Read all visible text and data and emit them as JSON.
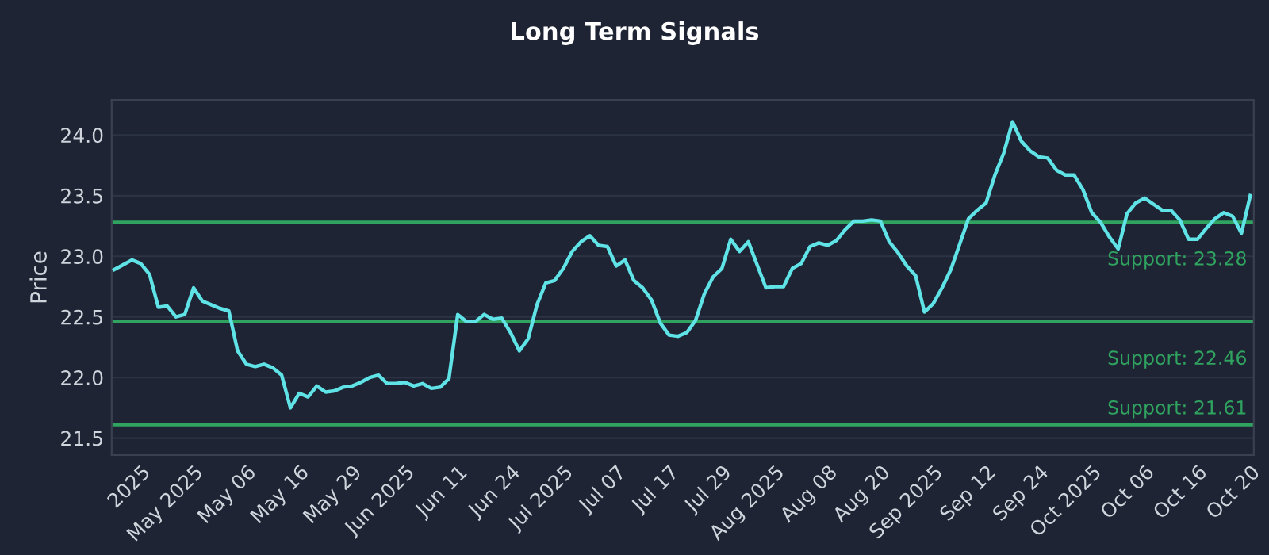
{
  "chart_data": {
    "type": "line",
    "title": "Long Term Signals",
    "ylabel": "Price",
    "categories": [
      null,
      null,
      null,
      "2025",
      null,
      null,
      null,
      null,
      null,
      "May 2025",
      null,
      null,
      null,
      null,
      null,
      "May 06",
      null,
      null,
      null,
      null,
      null,
      "May 16",
      null,
      null,
      null,
      null,
      null,
      "May 29",
      null,
      null,
      null,
      null,
      null,
      "Jun 2025",
      null,
      null,
      null,
      null,
      null,
      "Jun 11",
      null,
      null,
      null,
      null,
      null,
      "Jun 24",
      null,
      null,
      null,
      null,
      null,
      "Jul 2025",
      null,
      null,
      null,
      null,
      null,
      "Jul 07",
      null,
      null,
      null,
      null,
      null,
      "Jul 17",
      null,
      null,
      null,
      null,
      null,
      "Jul 29",
      null,
      null,
      null,
      null,
      null,
      "Aug 2025",
      null,
      null,
      null,
      null,
      null,
      "Aug 08",
      null,
      null,
      null,
      null,
      null,
      "Aug 20",
      null,
      null,
      null,
      null,
      null,
      "Sep 2025",
      null,
      null,
      null,
      null,
      null,
      "Sep 12",
      null,
      null,
      null,
      null,
      null,
      "Sep 24",
      null,
      null,
      null,
      null,
      null,
      "Oct 2025",
      null,
      null,
      null,
      null,
      null,
      "Oct 06",
      null,
      null,
      null,
      null,
      null,
      "Oct 16",
      null,
      null,
      null,
      null,
      null,
      "Oct 20"
    ],
    "series": [
      {
        "color": "#5fe3e6",
        "values": [
          22.89,
          22.93,
          22.97,
          22.94,
          22.85,
          22.58,
          22.59,
          22.5,
          22.52,
          22.74,
          22.63,
          22.6,
          22.57,
          22.55,
          22.22,
          22.11,
          22.09,
          22.11,
          22.08,
          22.02,
          21.75,
          21.87,
          21.84,
          21.93,
          21.88,
          21.89,
          21.92,
          21.93,
          21.96,
          22.0,
          22.02,
          21.95,
          21.95,
          21.96,
          21.93,
          21.95,
          21.91,
          21.92,
          21.99,
          22.52,
          22.46,
          22.46,
          22.52,
          22.48,
          22.49,
          22.37,
          22.22,
          22.32,
          22.6,
          22.78,
          22.8,
          22.9,
          23.04,
          23.12,
          23.17,
          23.09,
          23.08,
          22.92,
          22.97,
          22.8,
          22.74,
          22.64,
          22.45,
          22.35,
          22.34,
          22.37,
          22.47,
          22.69,
          22.83,
          22.9,
          23.14,
          23.04,
          23.12,
          22.93,
          22.74,
          22.75,
          22.75,
          22.9,
          22.94,
          23.08,
          23.11,
          23.09,
          23.13,
          23.22,
          23.29,
          23.29,
          23.3,
          23.29,
          23.12,
          23.03,
          22.92,
          22.84,
          22.54,
          22.61,
          22.74,
          22.89,
          23.1,
          23.31,
          23.38,
          23.44,
          23.67,
          23.85,
          24.11,
          23.95,
          23.87,
          23.82,
          23.81,
          23.71,
          23.67,
          23.67,
          23.55,
          23.36,
          23.28,
          23.16,
          23.06,
          23.35,
          23.44,
          23.48,
          23.43,
          23.38,
          23.38,
          23.3,
          23.14,
          23.14,
          23.23,
          23.31,
          23.36,
          23.33,
          23.19,
          23.5
        ]
      }
    ],
    "ylim": [
      21.36,
      24.29
    ],
    "yticks": [
      {
        "value": 21.5,
        "label": "21.5"
      },
      {
        "value": 22,
        "label": "22.0"
      },
      {
        "value": 22.5,
        "label": "22.5"
      },
      {
        "value": 23,
        "label": "23.0"
      },
      {
        "value": 23.5,
        "label": "23.5"
      },
      {
        "value": 24,
        "label": "24.0"
      }
    ],
    "ref_lines": [
      {
        "axis": "y",
        "value": 23.28,
        "label": "Support: 23.28",
        "color": "#2fa35f"
      },
      {
        "axis": "y",
        "value": 22.46,
        "label": "Support: 22.46",
        "color": "#2fa35f"
      },
      {
        "axis": "y",
        "value": 21.61,
        "label": "Support: 21.61",
        "color": "#2fa35f"
      }
    ],
    "grid": "y",
    "legend": false,
    "marker": "none",
    "line_style": "solid"
  }
}
